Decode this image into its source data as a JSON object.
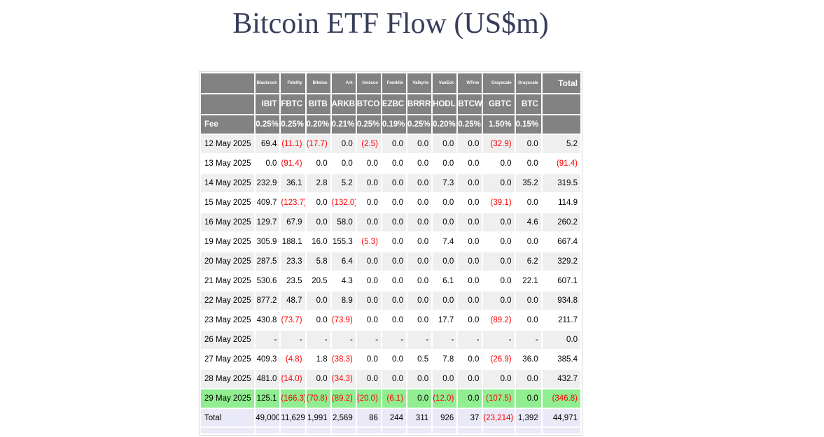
{
  "title": "Bitcoin ETF Flow (US$m)",
  "colors": {
    "header_bg": "#828282",
    "stripe_bg": "#efefef",
    "highlight_green": "#90ee90",
    "total_row_bg": "#e9e9f7",
    "negative_text": "#ff0000",
    "title_text": "#373d5a"
  },
  "chart_data": {
    "type": "table",
    "title": "Bitcoin ETF Flow (US$m)",
    "issuers": [
      "Blackrock",
      "Fidelity",
      "Bitwise",
      "Ark",
      "Invesco",
      "Franklin",
      "Valkyrie",
      "VanEck",
      "WTree",
      "Grayscale",
      "Grayscale"
    ],
    "tickers": [
      "IBIT",
      "FBTC",
      "BITB",
      "ARKB",
      "BTCO",
      "EZBC",
      "BRRR",
      "HODL",
      "BTCW",
      "GBTC",
      "BTC"
    ],
    "total_header": "Total",
    "fee_label": "Fee",
    "fees": [
      "0.25%",
      "0.25%",
      "0.20%",
      "0.21%",
      "0.25%",
      "0.19%",
      "0.25%",
      "0.20%",
      "0.25%",
      "1.50%",
      "0.15%"
    ],
    "rows": [
      {
        "date": "12 May 2025",
        "values": [
          "69.4",
          "(11.1)",
          "(17.7)",
          "0.0",
          "(2.5)",
          "0.0",
          "0.0",
          "0.0",
          "0.0",
          "(32.9)",
          "0.0"
        ],
        "total": "5.2",
        "highlight": false
      },
      {
        "date": "13 May 2025",
        "values": [
          "0.0",
          "(91.4)",
          "0.0",
          "0.0",
          "0.0",
          "0.0",
          "0.0",
          "0.0",
          "0.0",
          "0.0",
          "0.0"
        ],
        "total": "(91.4)",
        "highlight": false
      },
      {
        "date": "14 May 2025",
        "values": [
          "232.9",
          "36.1",
          "2.8",
          "5.2",
          "0.0",
          "0.0",
          "0.0",
          "7.3",
          "0.0",
          "0.0",
          "35.2"
        ],
        "total": "319.5",
        "highlight": false
      },
      {
        "date": "15 May 2025",
        "values": [
          "409.7",
          "(123.7)",
          "0.0",
          "(132.0)",
          "0.0",
          "0.0",
          "0.0",
          "0.0",
          "0.0",
          "(39.1)",
          "0.0"
        ],
        "total": "114.9",
        "highlight": false
      },
      {
        "date": "16 May 2025",
        "values": [
          "129.7",
          "67.9",
          "0.0",
          "58.0",
          "0.0",
          "0.0",
          "0.0",
          "0.0",
          "0.0",
          "0.0",
          "4.6"
        ],
        "total": "260.2",
        "highlight": false
      },
      {
        "date": "19 May 2025",
        "values": [
          "305.9",
          "188.1",
          "16.0",
          "155.3",
          "(5.3)",
          "0.0",
          "0.0",
          "7.4",
          "0.0",
          "0.0",
          "0.0"
        ],
        "total": "667.4",
        "highlight": false
      },
      {
        "date": "20 May 2025",
        "values": [
          "287.5",
          "23.3",
          "5.8",
          "6.4",
          "0.0",
          "0.0",
          "0.0",
          "0.0",
          "0.0",
          "0.0",
          "6.2"
        ],
        "total": "329.2",
        "highlight": false
      },
      {
        "date": "21 May 2025",
        "values": [
          "530.6",
          "23.5",
          "20.5",
          "4.3",
          "0.0",
          "0.0",
          "0.0",
          "6.1",
          "0.0",
          "0.0",
          "22.1"
        ],
        "total": "607.1",
        "highlight": false
      },
      {
        "date": "22 May 2025",
        "values": [
          "877.2",
          "48.7",
          "0.0",
          "8.9",
          "0.0",
          "0.0",
          "0.0",
          "0.0",
          "0.0",
          "0.0",
          "0.0"
        ],
        "total": "934.8",
        "highlight": false
      },
      {
        "date": "23 May 2025",
        "values": [
          "430.8",
          "(73.7)",
          "0.0",
          "(73.9)",
          "0.0",
          "0.0",
          "0.0",
          "17.7",
          "0.0",
          "(89.2)",
          "0.0"
        ],
        "total": "211.7",
        "highlight": false
      },
      {
        "date": "26 May 2025",
        "values": [
          "-",
          "-",
          "-",
          "-",
          "-",
          "-",
          "-",
          "-",
          "-",
          "-",
          "-"
        ],
        "total": "0.0",
        "highlight": false
      },
      {
        "date": "27 May 2025",
        "values": [
          "409.3",
          "(4.8)",
          "1.8",
          "(38.3)",
          "0.0",
          "0.0",
          "0.5",
          "7.8",
          "0.0",
          "(26.9)",
          "36.0"
        ],
        "total": "385.4",
        "highlight": false
      },
      {
        "date": "28 May 2025",
        "values": [
          "481.0",
          "(14.0)",
          "0.0",
          "(34.3)",
          "0.0",
          "0.0",
          "0.0",
          "0.0",
          "0.0",
          "0.0",
          "0.0"
        ],
        "total": "432.7",
        "highlight": false
      },
      {
        "date": "29 May 2025",
        "values": [
          "125.1",
          "(166.3)",
          "(70.8)",
          "(89.2)",
          "(20.0)",
          "(6.1)",
          "0.0",
          "(12.0)",
          "0.0",
          "(107.5)",
          "0.0"
        ],
        "total": "(346.8)",
        "highlight": true
      }
    ],
    "total_row": {
      "label": "Total",
      "values": [
        "49,000",
        "11,629",
        "1,991",
        "2,569",
        "86",
        "244",
        "311",
        "926",
        "37",
        "(23,214)",
        "1,392"
      ],
      "total": "44,971"
    }
  }
}
